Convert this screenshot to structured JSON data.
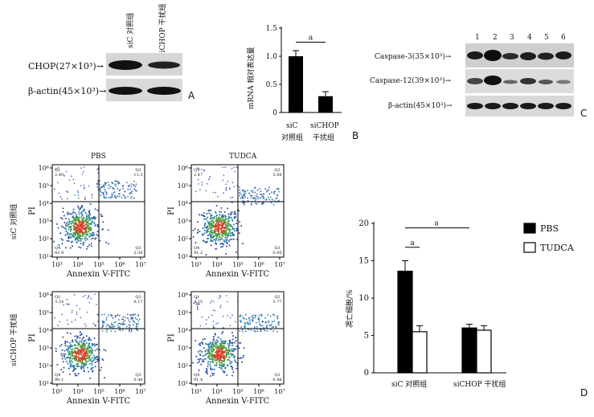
{
  "panelA": {
    "lane_labels": [
      "siC 对照组",
      "siCHOP 干扰组"
    ],
    "rows": [
      "CHOP(27×10³)→",
      "β-actin(45×10³)→"
    ],
    "letter": "A"
  },
  "panelB": {
    "ylabel": "mRNA 相对表达量",
    "yticks": [
      "0",
      "0.5",
      "1.0",
      "1.5"
    ],
    "sig": "a",
    "x1_line1": "siC",
    "x1_line2": "对照组",
    "x2_line1": "siCHOP",
    "x2_line2": "干扰组",
    "letter": "B"
  },
  "panelC": {
    "lanes": [
      "1",
      "2",
      "3",
      "4",
      "5",
      "6"
    ],
    "rows": [
      "Caspase-3(35×10³)→",
      "Caspase-12(39×10³)→",
      "β-actin(45×10³)→"
    ],
    "letter": "C"
  },
  "panelD": {
    "col_titles": [
      "PBS",
      "TUDCA"
    ],
    "row_titles": [
      "siC 对照组",
      "siCHOP 干扰组"
    ],
    "ylabel": "PI",
    "xlabel": "Annexin V-FITC",
    "xticks": [
      "10³",
      "10⁴",
      "10⁵",
      "10⁶",
      "10⁷"
    ],
    "yticks": [
      "10⁶",
      "10⁵",
      "10⁴",
      "10³",
      "10²",
      "10¹"
    ],
    "quads": [
      {
        "q1": "Q1",
        "q1v": "2.49",
        "q2": "Q2",
        "q2v": "11.3",
        "q3": "Q3",
        "q3v": "2.36",
        "q4": "Q4",
        "q4v": "83.9"
      },
      {
        "q1": "Q1",
        "q1v": "2.47",
        "q2": "Q2",
        "q2v": "5.89",
        "q3": "Q3",
        "q3v": "0.45",
        "q4": "Q4",
        "q4v": "91.2"
      },
      {
        "q1": "Q1",
        "q1v": "3.24",
        "q2": "Q2",
        "q2v": "6.17",
        "q3": "Q3",
        "q3v": "0.48",
        "q4": "Q4",
        "q4v": "90.1"
      },
      {
        "q1": "Q1",
        "q1v": "2.25",
        "q2": "Q2",
        "q2v": "5.77",
        "q3": "Q3",
        "q3v": "0.48",
        "q4": "Q4",
        "q4v": "91.4"
      }
    ],
    "letter": "D"
  },
  "chart_data": [
    {
      "type": "bar",
      "categories": [
        "siC 对照组",
        "siCHOP 干扰组"
      ],
      "values": [
        1.0,
        0.29
      ],
      "errors": [
        0.1,
        0.08
      ],
      "ylabel": "mRNA 相对表达量",
      "ylim": [
        0,
        1.5
      ],
      "color": "#000000"
    },
    {
      "type": "bar",
      "categories": [
        "siC 对照组",
        "siCHOP 干扰组"
      ],
      "series": [
        {
          "name": "PBS",
          "values": [
            13.6,
            6.0
          ],
          "errors": [
            1.4,
            0.5
          ],
          "color": "#000000"
        },
        {
          "name": "TUDCA",
          "values": [
            5.5,
            5.7
          ],
          "errors": [
            0.8,
            0.6
          ],
          "color": "#ffffff"
        }
      ],
      "ylabel": "凋亡细胞/%",
      "ylim": [
        0,
        20
      ],
      "yticks": [
        "0",
        "5",
        "10",
        "15",
        "20"
      ],
      "annotations": [
        "a",
        "a"
      ],
      "legend": "top-right"
    }
  ]
}
